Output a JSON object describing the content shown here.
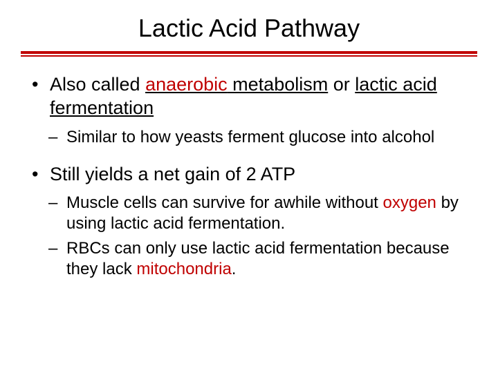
{
  "title": "Lactic Acid Pathway",
  "colors": {
    "accent": "#c00000",
    "text": "#000000",
    "background": "#ffffff"
  },
  "typography": {
    "title_fontsize": 36,
    "bullet1_fontsize": 27,
    "bullet2_fontsize": 24,
    "font_family": "Arial"
  },
  "bullets": {
    "b1": {
      "prefix": "Also called ",
      "anaerobic": "anaerobic",
      "mid1": " metabolism",
      "mid2": " or ",
      "lactic_frag": "lactic acid fermentation",
      "sub1": "Similar to how yeasts ferment glucose into alcohol"
    },
    "b2": {
      "text": "Still yields a net gain of 2 ATP",
      "sub1_prefix": "Muscle cells can survive for awhile without ",
      "sub1_oxygen": "oxygen",
      "sub1_suffix": " by using lactic acid fermentation.",
      "sub2_prefix": "RBCs can only use lactic acid fermentation because they lack ",
      "sub2_mito": "mitochondria",
      "sub2_suffix": "."
    }
  }
}
